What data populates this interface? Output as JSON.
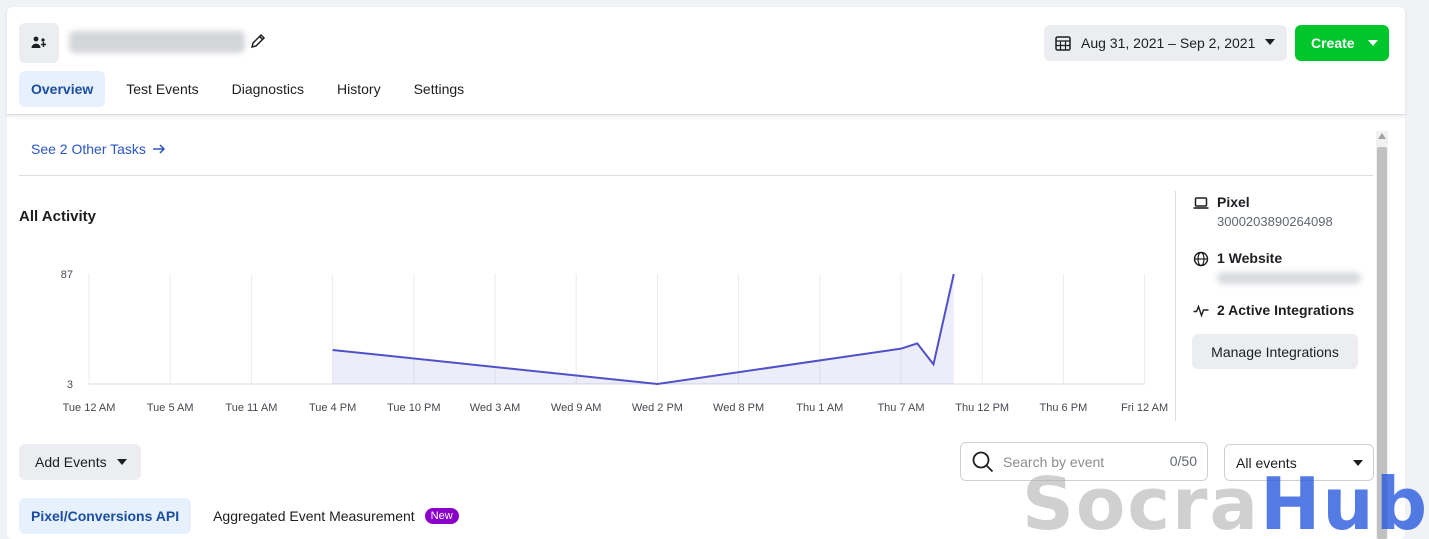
{
  "header": {
    "date_range": "Aug 31, 2021 – Sep 2, 2021",
    "create_label": "Create"
  },
  "tabs": [
    {
      "label": "Overview",
      "active": true
    },
    {
      "label": "Test Events"
    },
    {
      "label": "Diagnostics"
    },
    {
      "label": "History"
    },
    {
      "label": "Settings"
    }
  ],
  "tasks": {
    "see_other": "See 2 Other Tasks"
  },
  "activity": {
    "title": "All Activity"
  },
  "chart_data": {
    "type": "area",
    "title": "",
    "xlabel": "",
    "ylabel": "",
    "y_tick_labels": [
      "87",
      "3"
    ],
    "ylim": [
      3,
      87
    ],
    "grid": true,
    "x_tick_labels": [
      "Tue 12 AM",
      "Tue 5 AM",
      "Tue 11 AM",
      "Tue 4 PM",
      "Tue 10 PM",
      "Wed 3 AM",
      "Wed 9 AM",
      "Wed 2 PM",
      "Wed 8 PM",
      "Thu 1 AM",
      "Thu 7 AM",
      "Thu 12 PM",
      "Thu 6 PM",
      "Fri 12 AM"
    ],
    "series": [
      {
        "color": "#5050c8",
        "points": [
          {
            "x": 3.0,
            "y": 29
          },
          {
            "x": 7.0,
            "y": 3
          },
          {
            "x": 10.0,
            "y": 30
          },
          {
            "x": 10.2,
            "y": 34
          },
          {
            "x": 10.4,
            "y": 18
          },
          {
            "x": 10.65,
            "y": 87
          }
        ]
      }
    ]
  },
  "sidebar": {
    "pixel_title": "Pixel",
    "pixel_id": "3000203890264098",
    "website_title": "1 Website",
    "integrations_title": "2 Active Integrations",
    "manage_label": "Manage Integrations"
  },
  "events": {
    "add_label": "Add Events",
    "search_placeholder": "Search by event",
    "search_count": "0/50",
    "filter_value": "All events"
  },
  "subtabs": [
    {
      "label": "Pixel/Conversions API",
      "active": true
    },
    {
      "label": "Aggregated Event Measurement",
      "badge": "New"
    }
  ],
  "watermark": {
    "part1": "Socra",
    "part2": "Hub"
  },
  "colors": {
    "accent": "#1b4ea0",
    "create": "#00c62b",
    "badge": "#8b00c9",
    "line": "#5050c8"
  }
}
